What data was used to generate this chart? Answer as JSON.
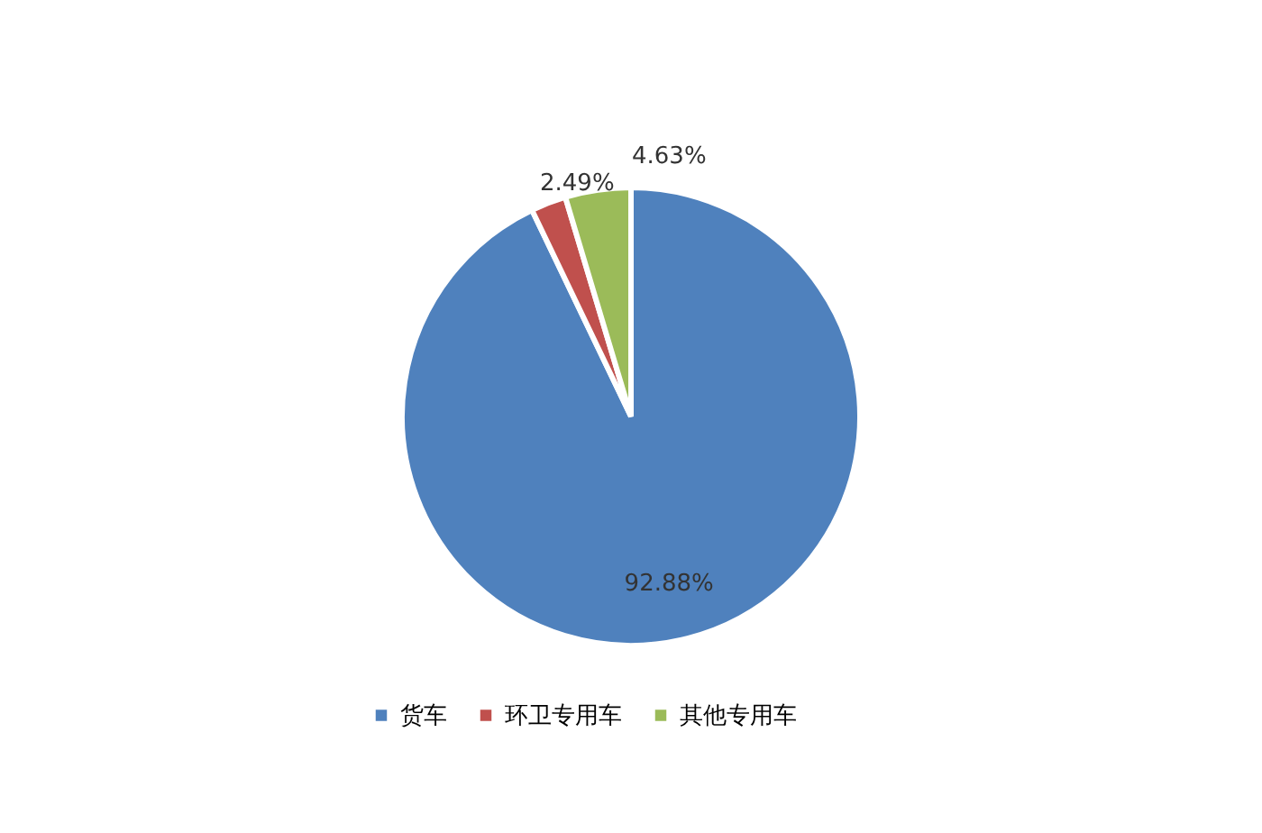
{
  "chart_data": {
    "type": "pie",
    "categories": [
      "货车",
      "环卫专用车",
      "其他专用车"
    ],
    "values": [
      92.88,
      2.49,
      4.63
    ],
    "colors": [
      "#4f81bd",
      "#c0504d",
      "#9bbb59"
    ],
    "value_labels": [
      "92.88%",
      "2.49%",
      "4.63%"
    ],
    "legend": "bottom"
  }
}
